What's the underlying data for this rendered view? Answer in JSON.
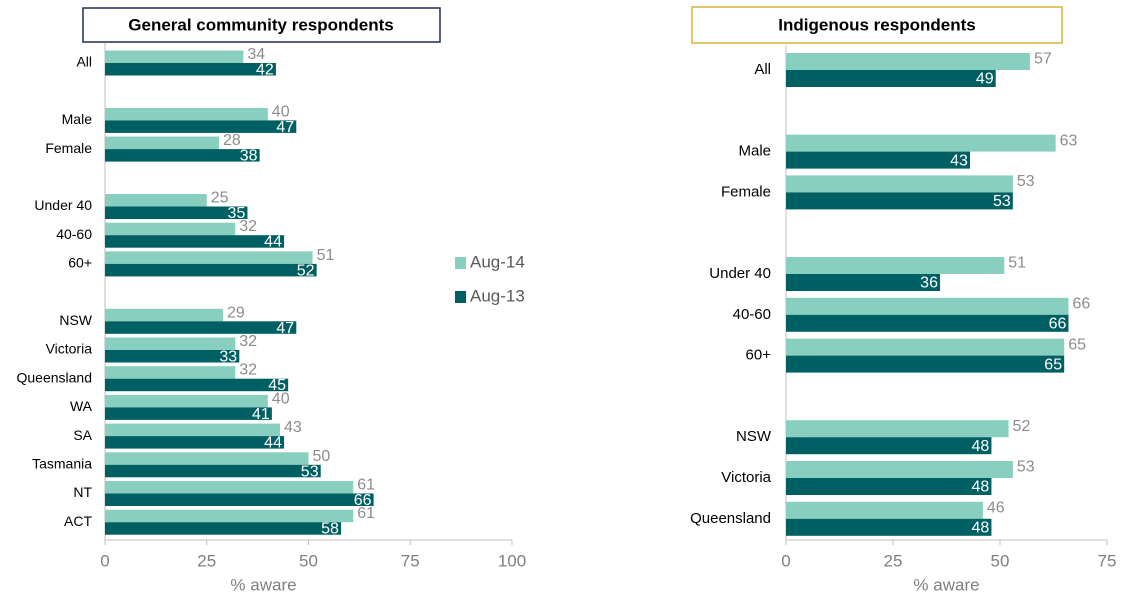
{
  "chart_data": [
    {
      "type": "bar",
      "orientation": "horizontal",
      "title": "General community respondents",
      "categories": [
        "All",
        "Male",
        "Female",
        "Under 40",
        "40-60",
        "60+",
        "NSW",
        "Victoria",
        "Queensland",
        "WA",
        "SA",
        "Tasmania",
        "NT",
        "ACT"
      ],
      "series": [
        {
          "name": "Aug-14",
          "color": "#88cfbf",
          "values": [
            34,
            40,
            28,
            25,
            32,
            51,
            29,
            32,
            32,
            40,
            43,
            50,
            61,
            61
          ]
        },
        {
          "name": "Aug-13",
          "color": "#005f63",
          "values": [
            42,
            47,
            38,
            35,
            44,
            52,
            47,
            33,
            45,
            41,
            44,
            53,
            66,
            58
          ]
        }
      ],
      "xlim": [
        0,
        100
      ],
      "xticks": [
        0,
        25,
        50,
        75,
        100
      ],
      "xlabel": "% aware"
    },
    {
      "type": "bar",
      "orientation": "horizontal",
      "title": "Indigenous respondents",
      "categories": [
        "All",
        "Male",
        "Female",
        "Under 40",
        "40-60",
        "60+",
        "NSW",
        "Victoria",
        "Queensland"
      ],
      "series": [
        {
          "color": "#88cfbf",
          "values": [
            57,
            63,
            53,
            51,
            66,
            65,
            52,
            53,
            46
          ]
        },
        {
          "color": "#005f63",
          "values": [
            49,
            43,
            53,
            36,
            66,
            65,
            48,
            48,
            48
          ]
        }
      ],
      "xlim": [
        0,
        75
      ],
      "xticks": [
        0,
        25,
        50,
        75
      ],
      "xlabel": "% aware"
    }
  ]
}
